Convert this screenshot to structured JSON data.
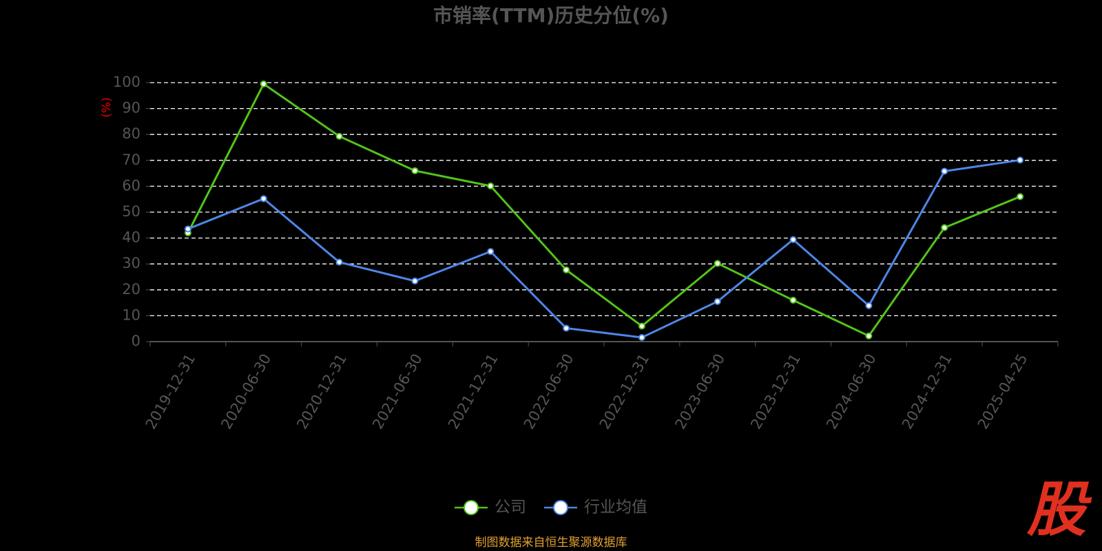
{
  "chart_data": {
    "type": "line",
    "title": "市销率(TTM)历史分位(%)",
    "y_label": "(%)",
    "categories": [
      "2019-12-31",
      "2020-06-30",
      "2020-12-31",
      "2021-06-30",
      "2021-12-31",
      "2022-06-30",
      "2022-12-31",
      "2023-06-30",
      "2023-12-31",
      "2024-06-30",
      "2024-12-31",
      "2025-04-25"
    ],
    "series": [
      {
        "name": "公司",
        "color": "#52c41a",
        "values": [
          42,
          99.5,
          79.3,
          66,
          60.1,
          27.7,
          6,
          30.2,
          16,
          2.2,
          44,
          56
        ]
      },
      {
        "name": "行业均值",
        "color": "#4e86e6",
        "values": [
          43.5,
          55.2,
          30.7,
          23.4,
          34.8,
          5.2,
          1.6,
          15.5,
          39.4,
          13.9,
          65.8,
          70.1
        ]
      }
    ],
    "ylim": [
      0,
      100
    ],
    "yticks": [
      0,
      10,
      20,
      30,
      40,
      50,
      60,
      70,
      80,
      90,
      100
    ],
    "grid": true,
    "legend": "bottom",
    "source": "制图数据来自恒生聚源数据库",
    "logo": "股"
  }
}
